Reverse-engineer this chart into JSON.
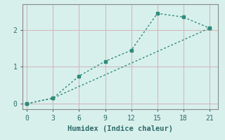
{
  "line1_x": [
    0,
    3,
    6,
    9,
    12,
    15,
    18,
    21
  ],
  "line1_y": [
    0.0,
    0.15,
    0.75,
    1.15,
    1.45,
    2.45,
    2.35,
    2.05
  ],
  "line2_x": [
    0,
    3,
    21
  ],
  "line2_y": [
    0.0,
    0.15,
    2.05
  ],
  "line_color": "#2e8b7a",
  "bg_color": "#d8f0ec",
  "grid_color": "#d4b8bc",
  "spine_color": "#888888",
  "xlabel": "Humidex (Indice chaleur)",
  "xlabel_color": "#2e6b6a",
  "tick_color": "#2e6b6a",
  "xlim": [
    -0.5,
    22
  ],
  "ylim": [
    -0.15,
    2.7
  ],
  "xticks": [
    0,
    3,
    6,
    9,
    12,
    15,
    18,
    21
  ],
  "yticks": [
    0,
    1,
    2
  ],
  "xlabel_fontsize": 7.5,
  "tick_fontsize": 7,
  "marker": "s",
  "markersize": 3,
  "linewidth": 1.0
}
